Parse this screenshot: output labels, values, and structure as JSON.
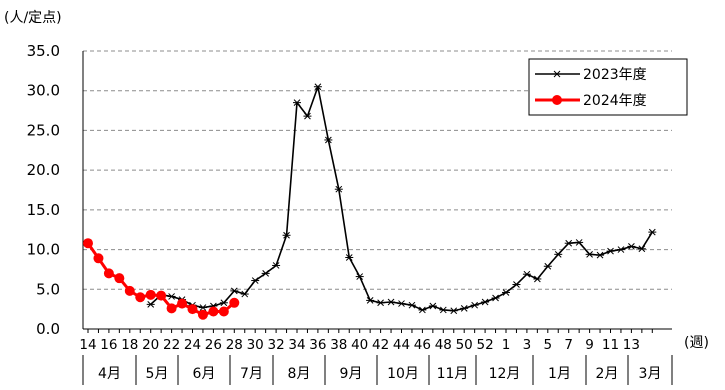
{
  "chart_data": {
    "type": "line",
    "unit_label": "(人/定点)",
    "x_unit_label": "(週)",
    "ylim": [
      0,
      35
    ],
    "y_ticks": [
      "0.0",
      "5.0",
      "10.0",
      "15.0",
      "20.0",
      "25.0",
      "30.0",
      "35.0"
    ],
    "grid": "horizontal dashed",
    "legend_position": "top-right",
    "week_labels": [
      "14",
      "16",
      "18",
      "20",
      "22",
      "24",
      "26",
      "28",
      "30",
      "32",
      "34",
      "36",
      "38",
      "40",
      "42",
      "44",
      "46",
      "48",
      "50",
      "52",
      "1",
      "3",
      "5",
      "7",
      "9",
      "11",
      "13"
    ],
    "month_labels": [
      "4月",
      "5月",
      "6月",
      "7月",
      "8月",
      "9月",
      "10月",
      "11月",
      "12月",
      "1月",
      "2月",
      "3月"
    ],
    "series": [
      {
        "name": "2023年度",
        "color": "#000000",
        "marker": "star",
        "values": [
          null,
          null,
          null,
          null,
          null,
          null,
          3.1,
          4.3,
          4.1,
          3.7,
          3.0,
          2.7,
          2.9,
          3.3,
          4.8,
          4.4,
          6.1,
          7.0,
          8.0,
          11.8,
          28.5,
          26.8,
          30.5,
          23.8,
          17.6,
          9.0,
          6.6,
          3.6,
          3.3,
          3.4,
          3.2,
          3.0,
          2.4,
          2.9,
          2.4,
          2.3,
          2.6,
          3.0,
          3.4,
          3.9,
          4.6,
          5.6,
          6.9,
          6.3,
          7.9,
          9.4,
          10.8,
          10.9,
          9.4,
          9.3,
          9.8,
          10.0,
          10.4,
          10.1,
          12.2
        ]
      },
      {
        "name": "2024年度",
        "color": "#ff0000",
        "marker": "circle",
        "values": [
          10.8,
          8.9,
          7.0,
          6.4,
          4.8,
          4.0,
          4.3,
          4.2,
          2.6,
          3.2,
          2.5,
          1.8,
          2.2,
          2.2,
          3.3
        ]
      }
    ]
  }
}
